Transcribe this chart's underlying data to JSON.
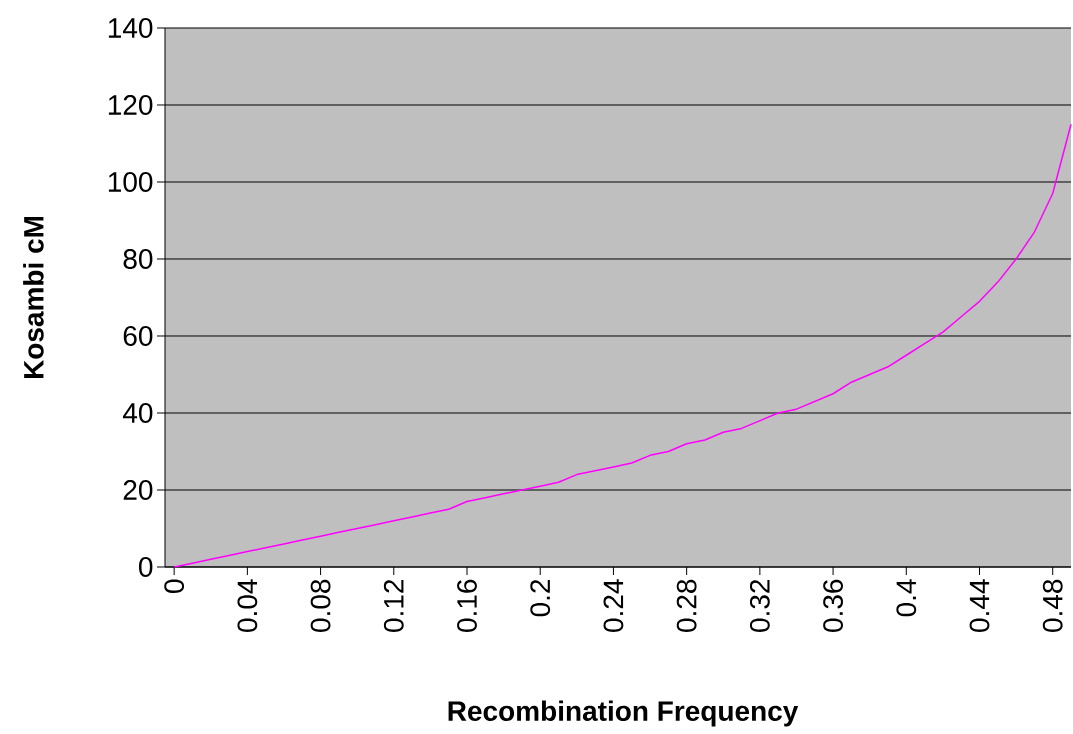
{
  "chart_data": {
    "type": "line",
    "xlabel": "Recombination Frequency",
    "ylabel": "Kosambi cM",
    "x": [
      0,
      0.01,
      0.02,
      0.03,
      0.04,
      0.05,
      0.06,
      0.07,
      0.08,
      0.09,
      0.1,
      0.11,
      0.12,
      0.13,
      0.14,
      0.15,
      0.16,
      0.17,
      0.18,
      0.19,
      0.2,
      0.21,
      0.22,
      0.23,
      0.24,
      0.25,
      0.26,
      0.27,
      0.28,
      0.29,
      0.3,
      0.31,
      0.32,
      0.33,
      0.34,
      0.35,
      0.36,
      0.37,
      0.38,
      0.39,
      0.4,
      0.41,
      0.42,
      0.43,
      0.44,
      0.45,
      0.46,
      0.47,
      0.48,
      0.49
    ],
    "series": [
      {
        "color": "#ff00ff",
        "values": [
          0,
          1,
          2,
          3,
          4,
          5,
          6,
          7,
          8,
          9,
          10,
          11,
          12,
          13,
          14,
          15,
          17,
          18,
          19,
          20,
          21,
          22,
          24,
          25,
          26,
          27,
          29,
          30,
          32,
          33,
          35,
          36,
          38,
          40,
          41,
          43,
          45,
          48,
          50,
          52,
          55,
          58,
          61,
          65,
          69,
          74,
          80,
          87,
          97,
          115
        ]
      }
    ],
    "xlim": [
      -0.005,
      0.49
    ],
    "ylim": [
      0,
      140
    ],
    "xticks": [
      0,
      0.04,
      0.08,
      0.12,
      0.16,
      0.2,
      0.24,
      0.28,
      0.32,
      0.36,
      0.4,
      0.44,
      0.48
    ],
    "yticks": [
      0,
      20,
      40,
      60,
      80,
      100,
      120,
      140
    ],
    "grid": "y",
    "marker": "none",
    "line_style": "solid"
  }
}
